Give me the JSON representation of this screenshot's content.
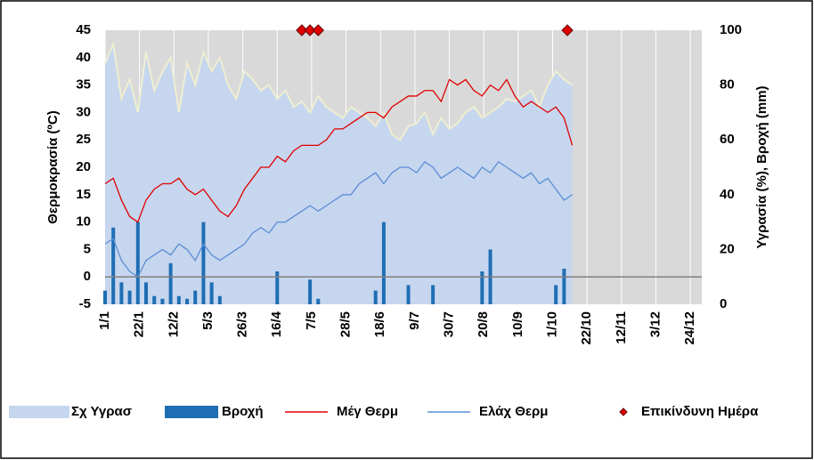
{
  "chart_data": {
    "type": "combo",
    "y_axis_label": "Θερμοκρασία (ºC)",
    "y2_axis_label": "Υγρασία (%), Βροχή (mm)",
    "xlim": [
      "1/1",
      "31/12"
    ],
    "xticks": [
      "1/1",
      "22/1",
      "12/2",
      "5/3",
      "26/3",
      "16/4",
      "7/5",
      "28/5",
      "18/6",
      "9/7",
      "30/7",
      "20/8",
      "10/9",
      "1/10",
      "22/10",
      "12/11",
      "3/12",
      "24/12"
    ],
    "ylim": [
      -5,
      45
    ],
    "yticks": [
      -5,
      0,
      5,
      10,
      15,
      20,
      25,
      30,
      35,
      40,
      45
    ],
    "y2lim": [
      0,
      100
    ],
    "y2ticks": [
      0,
      20,
      40,
      60,
      80,
      100
    ],
    "grid": "vertical",
    "legend": "bottom",
    "x": [
      "1/1",
      "6/1",
      "11/1",
      "16/1",
      "21/1",
      "26/1",
      "31/1",
      "5/2",
      "10/2",
      "15/2",
      "20/2",
      "25/2",
      "2/3",
      "7/3",
      "12/3",
      "17/3",
      "22/3",
      "27/3",
      "1/4",
      "6/4",
      "11/4",
      "16/4",
      "21/4",
      "26/4",
      "1/5",
      "6/5",
      "11/5",
      "16/5",
      "21/5",
      "26/5",
      "31/5",
      "5/6",
      "10/6",
      "15/6",
      "20/6",
      "25/6",
      "30/6",
      "5/7",
      "10/7",
      "15/7",
      "20/7",
      "25/7",
      "30/7",
      "4/8",
      "9/8",
      "14/8",
      "19/8",
      "24/8",
      "29/8",
      "3/9",
      "8/9",
      "13/9",
      "18/9",
      "23/9",
      "28/9",
      "3/10",
      "8/10",
      "13/10"
    ],
    "series": [
      {
        "name": "Σχ Υγρασ",
        "kind": "area",
        "axis": "y2",
        "color": "#c6d6ee",
        "edge_color": "#eeeed2",
        "values": [
          88,
          95,
          75,
          82,
          70,
          92,
          78,
          85,
          90,
          70,
          88,
          80,
          92,
          85,
          90,
          80,
          75,
          85,
          82,
          78,
          80,
          75,
          78,
          72,
          74,
          70,
          76,
          72,
          70,
          68,
          72,
          70,
          68,
          65,
          70,
          62,
          60,
          65,
          66,
          70,
          62,
          68,
          64,
          66,
          70,
          72,
          68,
          70,
          72,
          75,
          74,
          76,
          78,
          72,
          80,
          85,
          82,
          80
        ]
      },
      {
        "name": "Βροχή",
        "kind": "bar",
        "axis": "y2",
        "color": "#1f6eb4",
        "values": [
          5,
          28,
          8,
          5,
          30,
          8,
          3,
          2,
          15,
          3,
          2,
          5,
          30,
          8,
          3,
          0,
          0,
          0,
          0,
          0,
          0,
          12,
          0,
          0,
          0,
          9,
          2,
          0,
          0,
          0,
          0,
          0,
          0,
          5,
          30,
          0,
          0,
          7,
          0,
          0,
          7,
          0,
          0,
          0,
          0,
          0,
          12,
          20,
          0,
          0,
          0,
          0,
          0,
          0,
          0,
          7,
          13,
          0
        ]
      },
      {
        "name": "Μέγ Θερμ",
        "kind": "line",
        "color": "#e00000",
        "values": [
          17,
          18,
          14,
          11,
          10,
          14,
          16,
          17,
          17,
          18,
          16,
          15,
          16,
          14,
          12,
          11,
          13,
          16,
          18,
          20,
          20,
          22,
          21,
          23,
          24,
          24,
          24,
          25,
          27,
          27,
          28,
          29,
          30,
          30,
          29,
          31,
          32,
          33,
          33,
          34,
          34,
          32,
          36,
          35,
          36,
          34,
          33,
          35,
          34,
          36,
          33,
          31,
          32,
          31,
          30,
          31,
          29,
          24
        ]
      },
      {
        "name": "Ελάχ Θερμ",
        "kind": "line",
        "color": "#5b8ed6",
        "values": [
          6,
          7,
          3,
          1,
          0,
          3,
          4,
          5,
          4,
          6,
          5,
          3,
          6,
          4,
          3,
          4,
          5,
          6,
          8,
          9,
          8,
          10,
          10,
          11,
          12,
          13,
          12,
          13,
          14,
          15,
          15,
          17,
          18,
          19,
          17,
          19,
          20,
          20,
          19,
          21,
          20,
          18,
          19,
          20,
          19,
          18,
          20,
          19,
          21,
          20,
          19,
          18,
          19,
          17,
          18,
          16,
          14,
          15
        ]
      },
      {
        "name": "Επικίνδυνη Ημέρα",
        "kind": "marker",
        "color": "#e00000",
        "x": [
          "1/5",
          "6/5",
          "11/5",
          "10/10"
        ],
        "values": [
          45,
          45,
          45,
          45
        ]
      }
    ]
  }
}
